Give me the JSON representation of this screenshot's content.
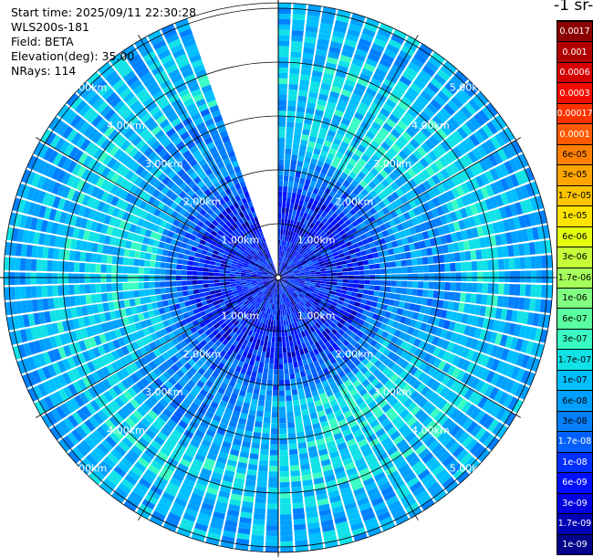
{
  "info": {
    "start_time": "Start time: 2025/09/11 22:30:28",
    "instrument": "WLS200s-181",
    "field": "Field: BETA",
    "elevation": "Elevation(deg): 35.00",
    "nrays": "NRays: 114"
  },
  "colorbar": {
    "title": "-1 sr-",
    "labels": [
      "0.0017",
      "0.001",
      "0.0006",
      "0.0003",
      "0.00017",
      "0.0001",
      "6e-05",
      "3e-05",
      "1.7e-05",
      "1e-05",
      "6e-06",
      "3e-06",
      "1.7e-06",
      "1e-06",
      "6e-07",
      "3e-07",
      "1.7e-07",
      "1e-07",
      "6e-08",
      "3e-08",
      "1.7e-08",
      "1e-08",
      "6e-09",
      "3e-09",
      "1.7e-09",
      "1e-09"
    ],
    "colors": [
      "#8b0000",
      "#b00000",
      "#d40000",
      "#f20c00",
      "#ff3300",
      "#ff5a00",
      "#ff8000",
      "#ffa500",
      "#ffc400",
      "#ffe300",
      "#e7ff10",
      "#c4ff3a",
      "#a6ff5a",
      "#80ff80",
      "#5aff9f",
      "#3afdc4",
      "#10e2e7",
      "#00bfff",
      "#00a0ff",
      "#0080ff",
      "#0060ff",
      "#0030ff",
      "#0010ff",
      "#0000e0",
      "#0000b4",
      "#00008b"
    ],
    "light_text_indices": [
      0,
      1,
      2,
      3,
      4,
      5,
      20,
      21,
      22,
      23,
      24,
      25
    ]
  },
  "chart_data": {
    "type": "heatmap",
    "subtype": "polar-ppi-scan",
    "field": "BETA",
    "nrays": 114,
    "elevation_deg": 35.0,
    "range_rings_km": [
      1.0,
      2.0,
      3.0,
      4.0,
      5.0
    ],
    "ring_labels": [
      "1.00km",
      "2.00km",
      "3.00km",
      "4.00km",
      "5.00km"
    ],
    "max_range_km": 5.1,
    "missing_sector_deg": [
      340,
      360
    ],
    "color_scale": "log",
    "value_range": [
      1e-09,
      0.0017
    ],
    "grid": true
  }
}
